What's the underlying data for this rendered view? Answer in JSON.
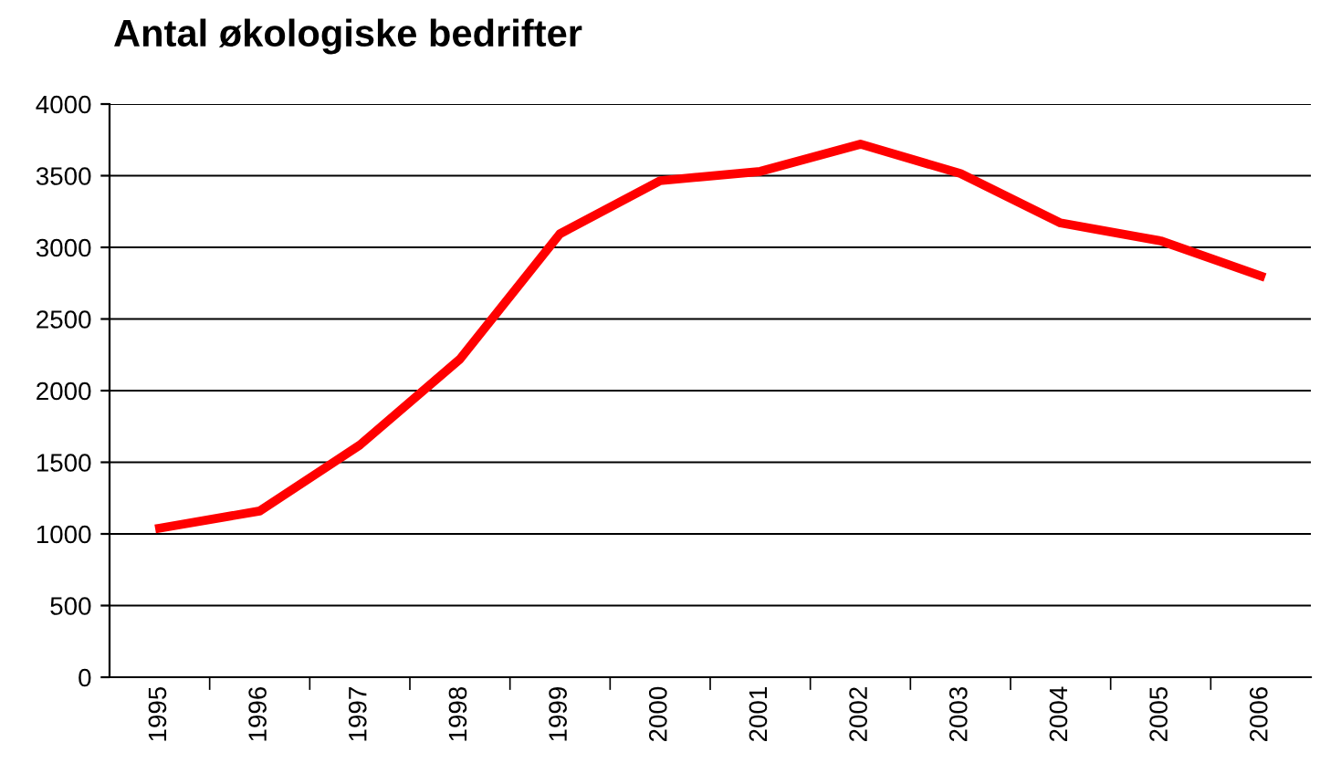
{
  "chart_data": {
    "type": "line",
    "title": "Antal økologiske bedrifter",
    "categories": [
      "1995",
      "1996",
      "1997",
      "1998",
      "1999",
      "2000",
      "2001",
      "2002",
      "2003",
      "2004",
      "2005",
      "2006"
    ],
    "series": [
      {
        "color": "#ff0000",
        "values": [
          1040,
          1160,
          1620,
          2220,
          3095,
          3465,
          3530,
          3720,
          3515,
          3170,
          3045,
          2800
        ]
      }
    ],
    "ylim": [
      0,
      4000
    ],
    "yticks": [
      0,
      500,
      1000,
      1500,
      2000,
      2500,
      3000,
      3500,
      4000
    ],
    "grid": "y",
    "legend": false,
    "marker": "none",
    "line_style": "solid"
  }
}
